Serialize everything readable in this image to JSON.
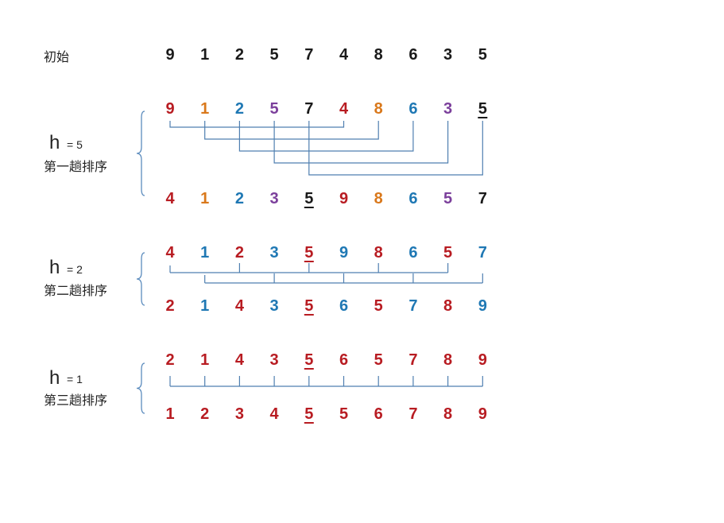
{
  "colors": {
    "black": "#1a1a1a",
    "red": "#b81c22",
    "orange": "#d9781b",
    "blue": "#1f78b4",
    "purple": "#7b3f9b",
    "line": "#4f7fb0",
    "brace": "#5b8bbd"
  },
  "initial": {
    "label": "初始",
    "values": [
      "9",
      "1",
      "2",
      "5",
      "7",
      "4",
      "8",
      "6",
      "3",
      "5"
    ],
    "colors": [
      "black",
      "black",
      "black",
      "black",
      "black",
      "black",
      "black",
      "black",
      "black",
      "black"
    ],
    "underline": []
  },
  "passes": [
    {
      "h_symbol": "h",
      "h_eq": "= 5",
      "label": "第一趟排序",
      "before": {
        "values": [
          "9",
          "1",
          "2",
          "5",
          "7",
          "4",
          "8",
          "6",
          "3",
          "5"
        ],
        "colors": [
          "red",
          "orange",
          "blue",
          "purple",
          "black",
          "red",
          "orange",
          "blue",
          "purple",
          "black"
        ],
        "underline": [
          9
        ]
      },
      "after": {
        "values": [
          "4",
          "1",
          "2",
          "3",
          "5",
          "9",
          "8",
          "6",
          "5",
          "7"
        ],
        "colors": [
          "red",
          "orange",
          "blue",
          "purple",
          "black",
          "red",
          "orange",
          "blue",
          "purple",
          "black"
        ],
        "underline": [
          4
        ]
      },
      "groups": [
        [
          0,
          5
        ],
        [
          1,
          6
        ],
        [
          2,
          7
        ],
        [
          3,
          8
        ],
        [
          4,
          9
        ]
      ]
    },
    {
      "h_symbol": "h",
      "h_eq": "= 2",
      "label": "第二趟排序",
      "before": {
        "values": [
          "4",
          "1",
          "2",
          "3",
          "5",
          "9",
          "8",
          "6",
          "5",
          "7"
        ],
        "colors": [
          "red",
          "blue",
          "red",
          "blue",
          "red",
          "blue",
          "red",
          "blue",
          "red",
          "blue"
        ],
        "underline": [
          4
        ]
      },
      "after": {
        "values": [
          "2",
          "1",
          "4",
          "3",
          "5",
          "6",
          "5",
          "7",
          "8",
          "9"
        ],
        "colors": [
          "red",
          "blue",
          "red",
          "blue",
          "red",
          "blue",
          "red",
          "blue",
          "red",
          "blue"
        ],
        "underline": [
          4
        ]
      },
      "groups": [
        [
          0,
          2,
          4,
          6,
          8
        ],
        [
          1,
          3,
          5,
          7,
          9
        ]
      ]
    },
    {
      "h_symbol": "h",
      "h_eq": "= 1",
      "label": "第三趟排序",
      "before": {
        "values": [
          "2",
          "1",
          "4",
          "3",
          "5",
          "6",
          "5",
          "7",
          "8",
          "9"
        ],
        "colors": [
          "red",
          "red",
          "red",
          "red",
          "red",
          "red",
          "red",
          "red",
          "red",
          "red"
        ],
        "underline": [
          4
        ]
      },
      "after": {
        "values": [
          "1",
          "2",
          "3",
          "4",
          "5",
          "5",
          "6",
          "7",
          "8",
          "9"
        ],
        "colors": [
          "red",
          "red",
          "red",
          "red",
          "red",
          "red",
          "red",
          "red",
          "red",
          "red"
        ],
        "underline": [
          4
        ]
      },
      "groups": [
        [
          0,
          1,
          2,
          3,
          4,
          5,
          6,
          7,
          8,
          9
        ]
      ]
    }
  ]
}
